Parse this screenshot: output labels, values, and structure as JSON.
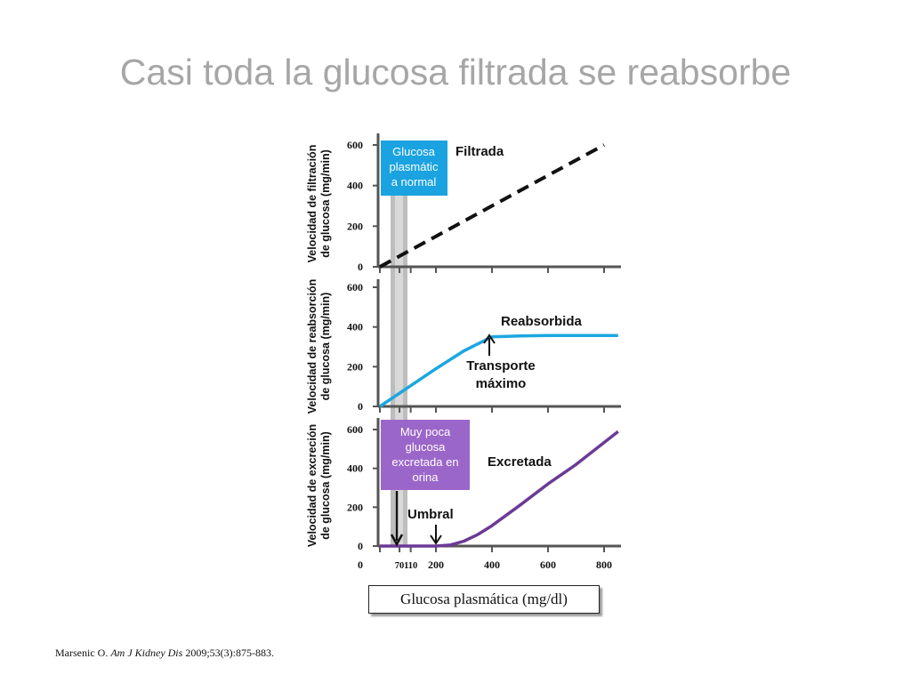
{
  "title": "Casi toda la glucosa filtrada se reabsorbe",
  "citation": {
    "author": "Marsenic O.",
    "journal": "Am J Kidney Dis",
    "reference": "2009;53(3):875-883."
  },
  "chart_data": {
    "type": "line",
    "xlabel": "Glucosa plasmática (mg/dl)",
    "x_ticks": [
      0,
      70,
      110,
      200,
      400,
      600,
      800
    ],
    "xlim": [
      0,
      850
    ],
    "colors": {
      "filtrada": "#111111",
      "reabsorbida": "#1ca7e0",
      "excretada": "#6b3a96",
      "box_normal": "#1aa3e0",
      "box_poca": "#9b66c9",
      "normal_band": "#bdbdbd"
    },
    "panels": [
      {
        "ylabel": [
          "Velocidad de filtración",
          "de glucosa (mg/min)"
        ],
        "y_ticks": [
          0,
          200,
          400,
          600
        ],
        "ylim": [
          0,
          650
        ],
        "series": [
          {
            "name": "Filtrada",
            "style": "dashed",
            "x": [
              0,
              800
            ],
            "y": [
              0,
              600
            ]
          }
        ],
        "box_text": [
          "Glucosa",
          "plasmátic",
          "a normal"
        ]
      },
      {
        "ylabel": [
          "Velocidad de reabsorción",
          "de glucosa (mg/min)"
        ],
        "y_ticks": [
          0,
          200,
          400,
          600
        ],
        "ylim": [
          0,
          650
        ],
        "series": [
          {
            "name": "Reabsorbida",
            "style": "solid",
            "x": [
              0,
              100,
              200,
              300,
              350,
              400,
              500,
              600,
              700,
              850
            ],
            "y": [
              0,
              95,
              190,
              280,
              315,
              350,
              355,
              357,
              357,
              357
            ]
          }
        ],
        "annotation": [
          "Transporte",
          "máximo"
        ]
      },
      {
        "ylabel": [
          "Velocidad de excreción",
          "de glucosa (mg/min)"
        ],
        "y_ticks": [
          0,
          200,
          400,
          600
        ],
        "ylim": [
          0,
          650
        ],
        "series": [
          {
            "name": "Excretada",
            "style": "solid",
            "x": [
              0,
              200,
              250,
              300,
              350,
              400,
              500,
              600,
              700,
              850
            ],
            "y": [
              0,
              0,
              5,
              25,
              60,
              105,
              210,
              320,
              420,
              590
            ]
          }
        ],
        "annotation": "Umbral",
        "box_text": [
          "Muy poca",
          "glucosa",
          "excretada en",
          "orina"
        ]
      }
    ]
  }
}
